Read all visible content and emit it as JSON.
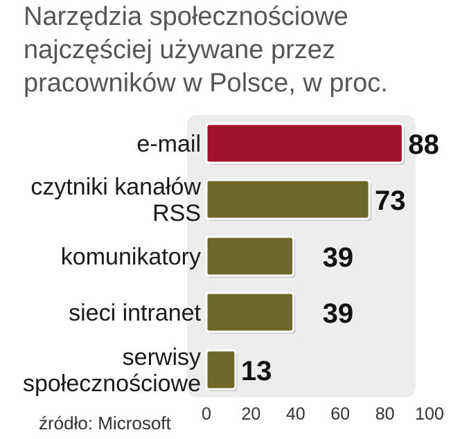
{
  "chart_data": {
    "type": "bar",
    "orientation": "horizontal",
    "title_lines": [
      "Narzędzia społecznościowe",
      "najczęściej używane przez",
      "pracowników w Polsce, w proc."
    ],
    "categories": [
      [
        "e-mail"
      ],
      [
        "czytniki kanałów",
        "RSS"
      ],
      [
        "komunikatory"
      ],
      [
        "sieci intranet"
      ],
      [
        "serwisy",
        "społecznościowe"
      ]
    ],
    "values": [
      88,
      73,
      39,
      39,
      13
    ],
    "highlight_color": "#a0122b",
    "bar_color": "#6b6829",
    "plot_background": "#ededed",
    "xlim": [
      0,
      100
    ],
    "xticks": [
      "0",
      "20",
      "40",
      "60",
      "80",
      "100"
    ],
    "grid": false,
    "source": "źródło: Microsoft"
  }
}
